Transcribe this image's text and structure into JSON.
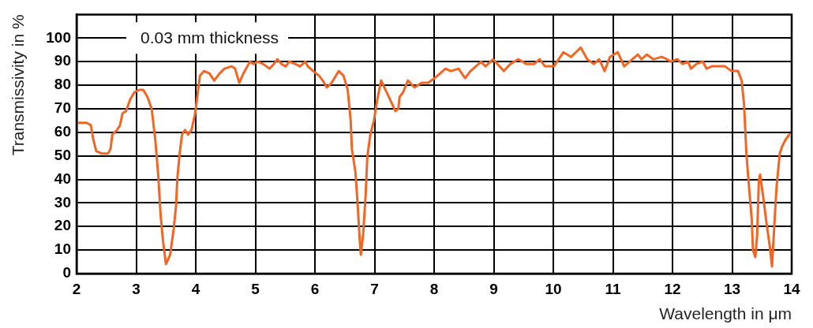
{
  "chart_data": {
    "type": "line",
    "xlabel": "Wavelength in μm",
    "ylabel": "Transmissivity in %",
    "annotations": [
      "0.03 mm thickness"
    ],
    "x": [
      2.04,
      2.17,
      2.24,
      2.28,
      2.33,
      2.42,
      2.53,
      2.57,
      2.6,
      2.68,
      2.73,
      2.77,
      2.83,
      2.9,
      2.97,
      3.05,
      3.12,
      3.19,
      3.26,
      3.32,
      3.37,
      3.41,
      3.45,
      3.5,
      3.57,
      3.63,
      3.67,
      3.69,
      3.73,
      3.77,
      3.82,
      3.87,
      3.93,
      3.99,
      4.02,
      4.07,
      4.14,
      4.23,
      4.31,
      4.4,
      4.48,
      4.6,
      4.66,
      4.73,
      4.8,
      4.91,
      4.97,
      5.04,
      5.13,
      5.24,
      5.31,
      5.37,
      5.44,
      5.51,
      5.57,
      5.67,
      5.75,
      5.84,
      5.88,
      5.97,
      6.07,
      6.13,
      6.2,
      6.28,
      6.4,
      6.48,
      6.55,
      6.6,
      6.62,
      6.68,
      6.72,
      6.75,
      6.77,
      6.81,
      6.85,
      6.88,
      6.93,
      6.99,
      7.04,
      7.11,
      7.24,
      7.35,
      7.4,
      7.42,
      7.48,
      7.56,
      7.67,
      7.79,
      7.9,
      8.01,
      8.1,
      8.19,
      8.28,
      8.41,
      8.52,
      8.61,
      8.7,
      8.79,
      8.86,
      8.99,
      9.17,
      9.28,
      9.41,
      9.55,
      9.68,
      9.77,
      9.86,
      10.01,
      10.17,
      10.3,
      10.46,
      10.57,
      10.68,
      10.77,
      10.86,
      10.95,
      11.08,
      11.19,
      11.28,
      11.42,
      11.48,
      11.57,
      11.68,
      11.82,
      11.91,
      11.97,
      12.08,
      12.17,
      12.26,
      12.31,
      12.4,
      12.51,
      12.57,
      12.66,
      12.77,
      12.88,
      12.99,
      13.1,
      13.16,
      13.2,
      13.24,
      13.28,
      13.33,
      13.35,
      13.39,
      13.42,
      13.45,
      13.47,
      13.52,
      13.58,
      13.63,
      13.67,
      13.69,
      13.71,
      13.73,
      13.75,
      13.8,
      13.84,
      13.9,
      13.96
    ],
    "series": [
      {
        "color": "#f26522",
        "values": [
          64,
          64,
          63,
          57,
          52,
          51,
          51,
          53,
          59,
          61,
          63,
          68,
          69,
          74,
          77,
          78,
          78,
          75,
          70,
          57,
          42,
          25,
          14,
          4,
          8,
          19,
          29,
          40,
          51,
          59,
          61,
          59,
          61,
          68,
          74,
          84,
          86,
          85,
          82,
          85,
          87,
          88,
          87,
          81,
          85,
          90,
          89,
          90,
          89,
          87,
          89,
          91,
          89,
          88,
          90,
          89,
          88,
          90,
          88,
          86,
          84,
          82,
          79,
          81,
          86,
          84,
          78,
          65,
          53,
          43,
          28,
          15,
          8,
          17,
          33,
          50,
          59,
          65,
          73,
          82,
          75,
          69,
          70,
          75,
          77,
          82,
          79,
          81,
          81,
          83,
          85,
          87,
          86,
          87,
          83,
          86,
          88,
          90,
          88,
          91,
          86,
          89,
          91,
          89,
          89,
          91,
          88,
          88,
          94,
          92,
          96,
          91,
          89,
          91,
          86,
          92,
          94,
          88,
          90,
          93,
          91,
          93,
          91,
          92,
          91,
          90,
          91,
          89,
          90,
          87,
          89,
          90,
          87,
          88,
          88,
          88,
          86,
          86,
          82,
          72,
          51,
          38,
          23,
          10,
          7,
          16,
          40,
          42,
          33,
          21,
          12,
          3,
          12,
          21,
          30,
          38,
          51,
          54,
          57,
          59
        ]
      }
    ],
    "xlim": [
      2,
      14
    ],
    "ylim": [
      0,
      110
    ],
    "xticks": [
      2,
      3,
      4,
      5,
      6,
      7,
      8,
      9,
      10,
      11,
      12,
      13,
      14
    ],
    "yticks": [
      0,
      10,
      20,
      30,
      40,
      50,
      60,
      70,
      80,
      90,
      100
    ],
    "grid": true,
    "marker": "none",
    "line_style": "solid"
  }
}
